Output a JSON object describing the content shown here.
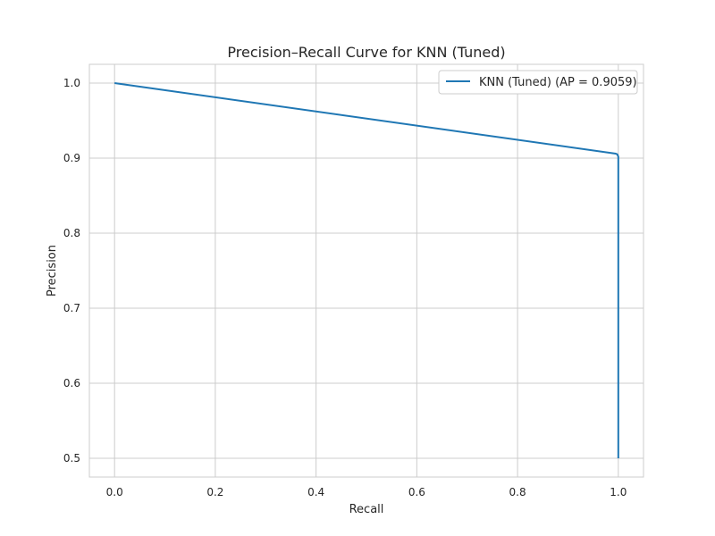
{
  "chart_data": {
    "type": "line",
    "title": "Precision–Recall Curve for KNN (Tuned)",
    "xlabel": "Recall",
    "ylabel": "Precision",
    "xlim": [
      -0.05,
      1.05
    ],
    "ylim": [
      0.475,
      1.025
    ],
    "xticks": [
      0.0,
      0.2,
      0.4,
      0.6,
      0.8,
      1.0
    ],
    "xtick_labels": [
      "0.0",
      "0.2",
      "0.4",
      "0.6",
      "0.8",
      "1.0"
    ],
    "yticks": [
      0.5,
      0.6,
      0.7,
      0.8,
      0.9,
      1.0
    ],
    "ytick_labels": [
      "0.5",
      "0.6",
      "0.7",
      "0.8",
      "0.9",
      "1.0"
    ],
    "grid": true,
    "legend_position": "upper right",
    "series": [
      {
        "name": "KNN (Tuned) (AP = 0.9059)",
        "color": "#1f77b4",
        "x": [
          0.0,
          0.995,
          0.998,
          1.0,
          1.0
        ],
        "y": [
          1.0,
          0.906,
          0.905,
          0.902,
          0.5
        ]
      }
    ]
  }
}
